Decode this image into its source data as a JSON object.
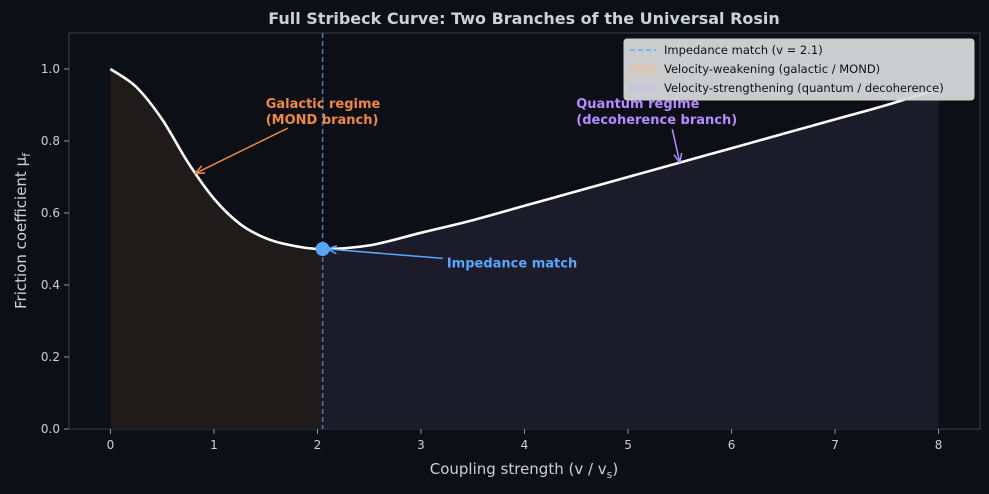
{
  "chart_data": {
    "type": "line",
    "title": "Full Stribeck Curve: Two Branches of the Universal Rosin",
    "xlabel": "Coupling strength (v / v",
    "xlabel_sub": "s",
    "xlabel_close": ")",
    "ylabel": "Friction coefficient μ",
    "ylabel_sub": "f",
    "xlim": [
      -0.4,
      8.4
    ],
    "ylim": [
      0.0,
      1.1
    ],
    "xticks": [
      0,
      1,
      2,
      3,
      4,
      5,
      6,
      7,
      8
    ],
    "yticks": [
      0.0,
      0.2,
      0.4,
      0.6,
      0.8,
      1.0
    ],
    "grid": false,
    "legend_position": "top-right",
    "series": [
      {
        "name": "",
        "color": "#ffffff",
        "x": [
          0,
          0.25,
          0.5,
          0.75,
          1.0,
          1.25,
          1.5,
          1.75,
          2.05,
          2.5,
          3.0,
          3.5,
          4.0,
          4.5,
          5.0,
          5.5,
          6.0,
          6.5,
          7.0,
          7.5,
          8.0
        ],
        "y": [
          1.0,
          0.95,
          0.86,
          0.74,
          0.64,
          0.57,
          0.53,
          0.51,
          0.5,
          0.51,
          0.545,
          0.58,
          0.62,
          0.66,
          0.7,
          0.74,
          0.78,
          0.82,
          0.86,
          0.9,
          0.945
        ]
      }
    ],
    "impedance_x": 2.05,
    "impedance_y": 0.5,
    "regions": [
      {
        "label": "Velocity-weakening (galactic / MOND)",
        "x_from": 0,
        "x_to": 2.05,
        "color": "#1f1b1a",
        "legend_color": "#d8c8b8"
      },
      {
        "label": "Velocity-strengthening (quantum / decoherence)",
        "x_from": 2.05,
        "x_to": 8.0,
        "color": "#1b1b29",
        "legend_color": "#c8c6d8"
      }
    ],
    "legend": {
      "impedance_label": "Impedance match (v = 2.1)",
      "impedance_color": "#66aaff"
    },
    "annotations": [
      {
        "id": "galactic",
        "lines": [
          "Galactic regime",
          "(MOND branch)"
        ],
        "color": "#f0883e",
        "x": 1.5,
        "y": 0.88,
        "arrow_to_x": 0.82,
        "arrow_to_y": 0.71
      },
      {
        "id": "quantum",
        "lines": [
          "Quantum regime",
          "(decoherence branch)"
        ],
        "color": "#b58cff",
        "x": 4.5,
        "y": 0.88,
        "arrow_to_x": 5.5,
        "arrow_to_y": 0.74
      },
      {
        "id": "impedance",
        "lines": [
          "Impedance match"
        ],
        "color": "#58a6ff",
        "x": 3.25,
        "y": 0.46,
        "arrow_to_x": 2.05,
        "arrow_to_y": 0.5
      }
    ]
  }
}
